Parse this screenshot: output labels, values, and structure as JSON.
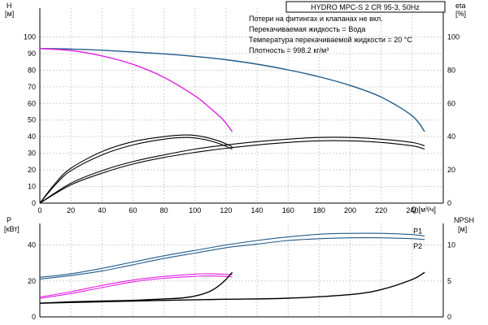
{
  "chart_data": {
    "type": "line",
    "title": "HYDRO MPC-S 2 CR 95-3, 50Hz",
    "notes": [
      "Потери на фитингах и клапанах не вкл.",
      "Перекачиваемая жидкость = Вода",
      "Температура перекачиваемой жидкости = 20 °C",
      "Плотность = 998.2 кг/м³"
    ],
    "colors": {
      "curve": "#000000",
      "blue": "#1f5a8a",
      "magenta": "#e020e0",
      "grid": "#d0d0d0"
    },
    "xaxis": {
      "label": "Q [м³/ч]",
      "range": [
        0,
        260
      ],
      "ticks": [
        "0",
        "20",
        "40",
        "60",
        "80",
        "100",
        "120",
        "140",
        "160",
        "180",
        "200",
        "220",
        "240"
      ]
    },
    "upper": {
      "left_axis": {
        "label_top": "H",
        "label_unit": "[м]",
        "range": [
          0,
          110
        ],
        "ticks": [
          "0",
          "10",
          "20",
          "30",
          "40",
          "50",
          "60",
          "70",
          "80",
          "90",
          "100"
        ]
      },
      "right_axis": {
        "label_top": "eta",
        "label_unit": "[%]",
        "range": [
          0,
          110
        ],
        "ticks": [
          "0",
          "20",
          "40",
          "60",
          "80",
          "100"
        ]
      },
      "series": [
        {
          "kind": "H",
          "color": "blue",
          "x": [
            0,
            20,
            40,
            60,
            80,
            100,
            120,
            140,
            160,
            180,
            200,
            220,
            240,
            248
          ],
          "y": [
            93,
            92.7,
            92,
            91,
            89.8,
            88.3,
            86.3,
            83.6,
            80.2,
            76,
            70.8,
            63.8,
            52.5,
            43
          ]
        },
        {
          "kind": "H",
          "color": "magenta",
          "x": [
            0,
            20,
            40,
            60,
            80,
            100,
            110,
            118,
            124
          ],
          "y": [
            93,
            91.8,
            88.6,
            83.5,
            75.7,
            64.5,
            57,
            50.3,
            43
          ]
        },
        {
          "kind": "eta",
          "color": "black",
          "x": [
            0,
            10,
            20,
            40,
            60,
            80,
            95,
            105,
            115,
            124
          ],
          "y": [
            0,
            11,
            19.5,
            29,
            35,
            38.5,
            39.5,
            38.5,
            36,
            32.5
          ]
        },
        {
          "kind": "eta",
          "color": "black",
          "x": [
            0,
            10,
            20,
            40,
            60,
            80,
            95,
            105,
            115,
            124
          ],
          "y": [
            0,
            12,
            21,
            31,
            37,
            40,
            41,
            40,
            37.5,
            34
          ]
        },
        {
          "kind": "eta",
          "color": "black",
          "x": [
            0,
            20,
            40,
            60,
            80,
            100,
            120,
            140,
            160,
            180,
            200,
            220,
            240,
            248
          ],
          "y": [
            0,
            11,
            18,
            23.5,
            27.5,
            30.5,
            33,
            35,
            36.5,
            37.5,
            37.5,
            36.5,
            34.5,
            32.5
          ]
        },
        {
          "kind": "eta",
          "color": "black",
          "x": [
            0,
            20,
            40,
            60,
            80,
            100,
            120,
            140,
            160,
            180,
            200,
            220,
            240,
            248
          ],
          "y": [
            0,
            12,
            19.5,
            25,
            29,
            32.5,
            35,
            37,
            38.5,
            39.5,
            39.5,
            38.5,
            36.5,
            34.5
          ]
        }
      ]
    },
    "lower": {
      "left_axis": {
        "label_top": "P",
        "label_unit": "[кВт]",
        "range": [
          0,
          52
        ],
        "ticks": [
          "0",
          "20",
          "40"
        ]
      },
      "right_axis": {
        "label_top": "NPSH",
        "label_unit": "[м]",
        "range": [
          0,
          13
        ],
        "ticks": [
          "0",
          "5",
          "10"
        ]
      },
      "series": [
        {
          "name": "P1",
          "kind": "P",
          "color": "blue",
          "x": [
            0,
            20,
            40,
            60,
            80,
            100,
            120,
            140,
            160,
            180,
            200,
            220,
            240,
            248
          ],
          "y": [
            22,
            24,
            27,
            30.5,
            34,
            37,
            40,
            42.5,
            44.5,
            46,
            46.5,
            46.5,
            45.8,
            45
          ]
        },
        {
          "name": "P2",
          "kind": "P",
          "color": "blue",
          "x": [
            0,
            20,
            40,
            60,
            80,
            100,
            120,
            140,
            160,
            180,
            200,
            220,
            240,
            248
          ],
          "y": [
            21,
            23,
            25.5,
            29,
            32.5,
            35.5,
            38.5,
            40.5,
            42.5,
            43.5,
            44,
            44,
            43.5,
            43
          ]
        },
        {
          "kind": "P",
          "color": "magenta",
          "x": [
            0,
            20,
            40,
            60,
            80,
            100,
            110,
            124
          ],
          "y": [
            11,
            14,
            17.5,
            20.5,
            22.5,
            23.8,
            24,
            23.5
          ]
        },
        {
          "kind": "P",
          "color": "magenta",
          "x": [
            0,
            20,
            40,
            60,
            80,
            100,
            110,
            124
          ],
          "y": [
            10.3,
            13,
            16.3,
            19.5,
            21.5,
            22.5,
            22.8,
            22.3
          ]
        },
        {
          "kind": "NPSH",
          "color": "black",
          "x": [
            0,
            20,
            40,
            60,
            80,
            90,
            100,
            110,
            118,
            124
          ],
          "y": [
            1.9,
            2.1,
            2.2,
            2.3,
            2.5,
            2.6,
            2.9,
            3.6,
            4.8,
            6.2
          ]
        },
        {
          "kind": "NPSH",
          "color": "black",
          "x": [
            0,
            40,
            80,
            120,
            160,
            200,
            220,
            240,
            248
          ],
          "y": [
            1.9,
            2.1,
            2.3,
            2.45,
            2.6,
            3.1,
            3.8,
            5.2,
            6.2
          ]
        }
      ]
    }
  }
}
